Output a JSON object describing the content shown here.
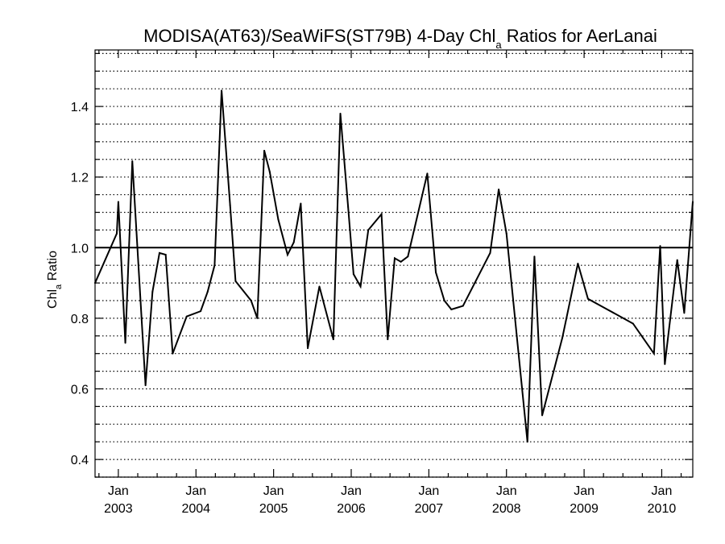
{
  "chart_data": {
    "type": "line",
    "title": {
      "prefix": "MODISA(AT63)/SeaWiFS(ST79B) 4-Day Chl",
      "subscript": "a",
      "suffix": " Ratios for AerLanai"
    },
    "ylabel": {
      "main": "Chl",
      "subscript": "a",
      "suffix": " Ratio"
    },
    "xlabel": "",
    "xlim": [
      2002.7,
      2010.4
    ],
    "ylim": [
      0.35,
      1.56
    ],
    "y_ticks": [
      {
        "value": 0.4,
        "label": "0.4"
      },
      {
        "value": 0.6,
        "label": "0.6"
      },
      {
        "value": 0.8,
        "label": "0.8"
      },
      {
        "value": 1.0,
        "label": "1.0"
      },
      {
        "value": 1.2,
        "label": "1.2"
      },
      {
        "value": 1.4,
        "label": "1.4"
      }
    ],
    "y_minor_step": 0.05,
    "x_ticks": [
      {
        "value": 2003,
        "month": "Jan",
        "year": "2003"
      },
      {
        "value": 2004,
        "month": "Jan",
        "year": "2004"
      },
      {
        "value": 2005,
        "month": "Jan",
        "year": "2005"
      },
      {
        "value": 2006,
        "month": "Jan",
        "year": "2006"
      },
      {
        "value": 2007,
        "month": "Jan",
        "year": "2007"
      },
      {
        "value": 2008,
        "month": "Jan",
        "year": "2008"
      },
      {
        "value": 2009,
        "month": "Jan",
        "year": "2009"
      },
      {
        "value": 2010,
        "month": "Jan",
        "year": "2010"
      }
    ],
    "grid": true,
    "reference_line": 1.0,
    "series": [
      {
        "x": [
          2002.7,
          2002.98,
          2003.0,
          2003.09,
          2003.18,
          2003.35,
          2003.44,
          2003.53,
          2003.61,
          2003.7,
          2003.88,
          2004.06,
          2004.15,
          2004.24,
          2004.33,
          2004.44,
          2004.51,
          2004.71,
          2004.79,
          2004.88,
          2004.95,
          2005.06,
          2005.18,
          2005.26,
          2005.35,
          2005.44,
          2005.59,
          2005.77,
          2005.86,
          2005.96,
          2006.03,
          2006.12,
          2006.22,
          2006.39,
          2006.47,
          2006.56,
          2006.64,
          2006.73,
          2006.98,
          2007.09,
          2007.2,
          2007.29,
          2007.44,
          2007.79,
          2007.9,
          2008.0,
          2008.27,
          2008.36,
          2008.46,
          2008.72,
          2008.92,
          2009.05,
          2009.63,
          2009.9,
          2009.98,
          2010.04,
          2010.2,
          2010.29,
          2010.4
        ],
        "y": [
          0.9,
          1.04,
          1.13,
          0.73,
          1.245,
          0.61,
          0.875,
          0.985,
          0.98,
          0.7,
          0.805,
          0.82,
          0.875,
          0.95,
          1.445,
          1.12,
          0.905,
          0.85,
          0.8,
          1.275,
          1.215,
          1.08,
          0.98,
          1.015,
          1.125,
          0.715,
          0.89,
          0.74,
          1.38,
          1.115,
          0.925,
          0.89,
          1.05,
          1.095,
          0.74,
          0.97,
          0.96,
          0.975,
          1.21,
          0.93,
          0.85,
          0.825,
          0.835,
          0.985,
          1.165,
          1.04,
          0.45,
          0.975,
          0.525,
          0.745,
          0.955,
          0.855,
          0.785,
          0.7,
          1.005,
          0.67,
          0.965,
          0.815,
          1.13
        ]
      }
    ]
  }
}
